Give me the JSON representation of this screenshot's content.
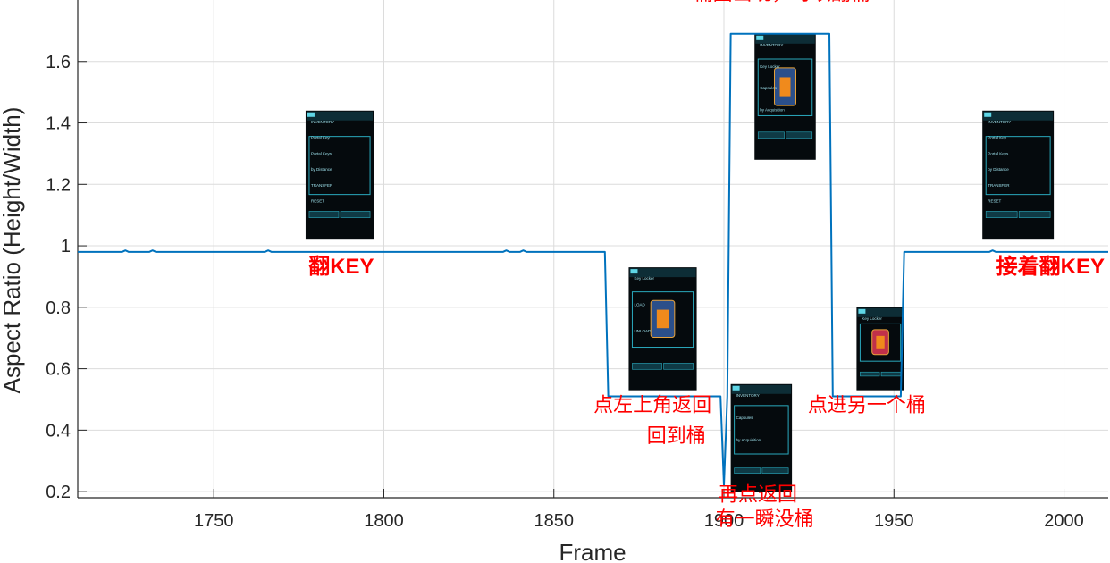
{
  "chart_data": {
    "type": "line",
    "title": "",
    "xlabel": "Frame",
    "ylabel": "Aspect Ratio (Height/Width)",
    "xlim": [
      1710,
      2013
    ],
    "ylim": [
      0.18,
      1.8
    ],
    "xticks": [
      1750,
      1800,
      1850,
      1900,
      1950,
      2000
    ],
    "yticks": [
      0.2,
      0.4,
      0.6,
      0.8,
      1,
      1.2,
      1.4,
      1.6
    ],
    "ytick_labels": [
      "0.2",
      "0.4",
      "0.6",
      "0.8",
      "1",
      "1.2",
      "1.4",
      "1.6"
    ],
    "grid": true,
    "line_color": "#0072bd",
    "annotation_color": "#ff0000",
    "series": [
      {
        "x": [
          1710,
          1723,
          1724,
          1725,
          1731,
          1732,
          1733,
          1765,
          1766,
          1767,
          1835,
          1836,
          1837,
          1840,
          1841,
          1842,
          1865,
          1866,
          1899,
          1900,
          1901,
          1902,
          1931,
          1932,
          1952,
          1953,
          1978,
          1979,
          1980,
          2013
        ],
        "y": [
          0.98,
          0.98,
          0.985,
          0.98,
          0.98,
          0.985,
          0.98,
          0.98,
          0.985,
          0.98,
          0.98,
          0.985,
          0.98,
          0.98,
          0.985,
          0.98,
          0.98,
          0.51,
          0.51,
          0.22,
          0.51,
          1.69,
          1.69,
          0.51,
          0.51,
          0.98,
          0.98,
          0.985,
          0.98,
          0.98
        ]
      }
    ],
    "annotations": [
      {
        "text": "翻KEY",
        "x": 1787.5,
        "y": 0.91
      },
      {
        "text": "点左上角返回",
        "x": 1879,
        "y": 0.46
      },
      {
        "text": "回到桶",
        "x": 1886,
        "y": 0.36
      },
      {
        "text": "再点返回",
        "x": 1910,
        "y": 0.17
      },
      {
        "text": "有一瞬没桶",
        "x": 1912,
        "y": 0.09
      },
      {
        "text": "桶图出现，可以翻桶",
        "x": 1917,
        "y": 1.8
      },
      {
        "text": "点进另一个桶",
        "x": 1942,
        "y": 0.46
      },
      {
        "text": "接着翻KEY",
        "x": 1996,
        "y": 0.91
      }
    ],
    "inset_screens": [
      {
        "name": "inventory-portal-keys",
        "x0": 1777,
        "x1": 1797,
        "y0": 1.02,
        "y1": 1.44,
        "texts": [
          "INVENTORY",
          "Portal Key",
          "Portal Keys",
          "by Distance",
          "TRANSFER",
          "RESET"
        ]
      },
      {
        "name": "key-locker-blue",
        "x0": 1872,
        "x1": 1892,
        "y0": 0.53,
        "y1": 0.93,
        "texts": [
          "Key Locker",
          "LOAD",
          "UNLOAD"
        ]
      },
      {
        "name": "empty-inventory",
        "x0": 1902,
        "x1": 1920,
        "y0": 0.2,
        "y1": 0.55,
        "texts": [
          "INVENTORY",
          "Capsules",
          "by Acquisition"
        ]
      },
      {
        "name": "key-locker-inventory",
        "x0": 1909,
        "x1": 1927,
        "y0": 1.28,
        "y1": 1.69,
        "texts": [
          "INVENTORY",
          "Key Locker",
          "Capsules",
          "by Acquisition"
        ]
      },
      {
        "name": "key-locker-red",
        "x0": 1939,
        "x1": 1953,
        "y0": 0.53,
        "y1": 0.8,
        "texts": [
          "Key Locker"
        ]
      },
      {
        "name": "inventory-portal-keys-2",
        "x0": 1976,
        "x1": 1997,
        "y0": 1.02,
        "y1": 1.44,
        "texts": [
          "INVENTORY",
          "Portal Key",
          "Portal Keys",
          "by Distance",
          "TRANSFER",
          "RESET"
        ]
      }
    ]
  }
}
